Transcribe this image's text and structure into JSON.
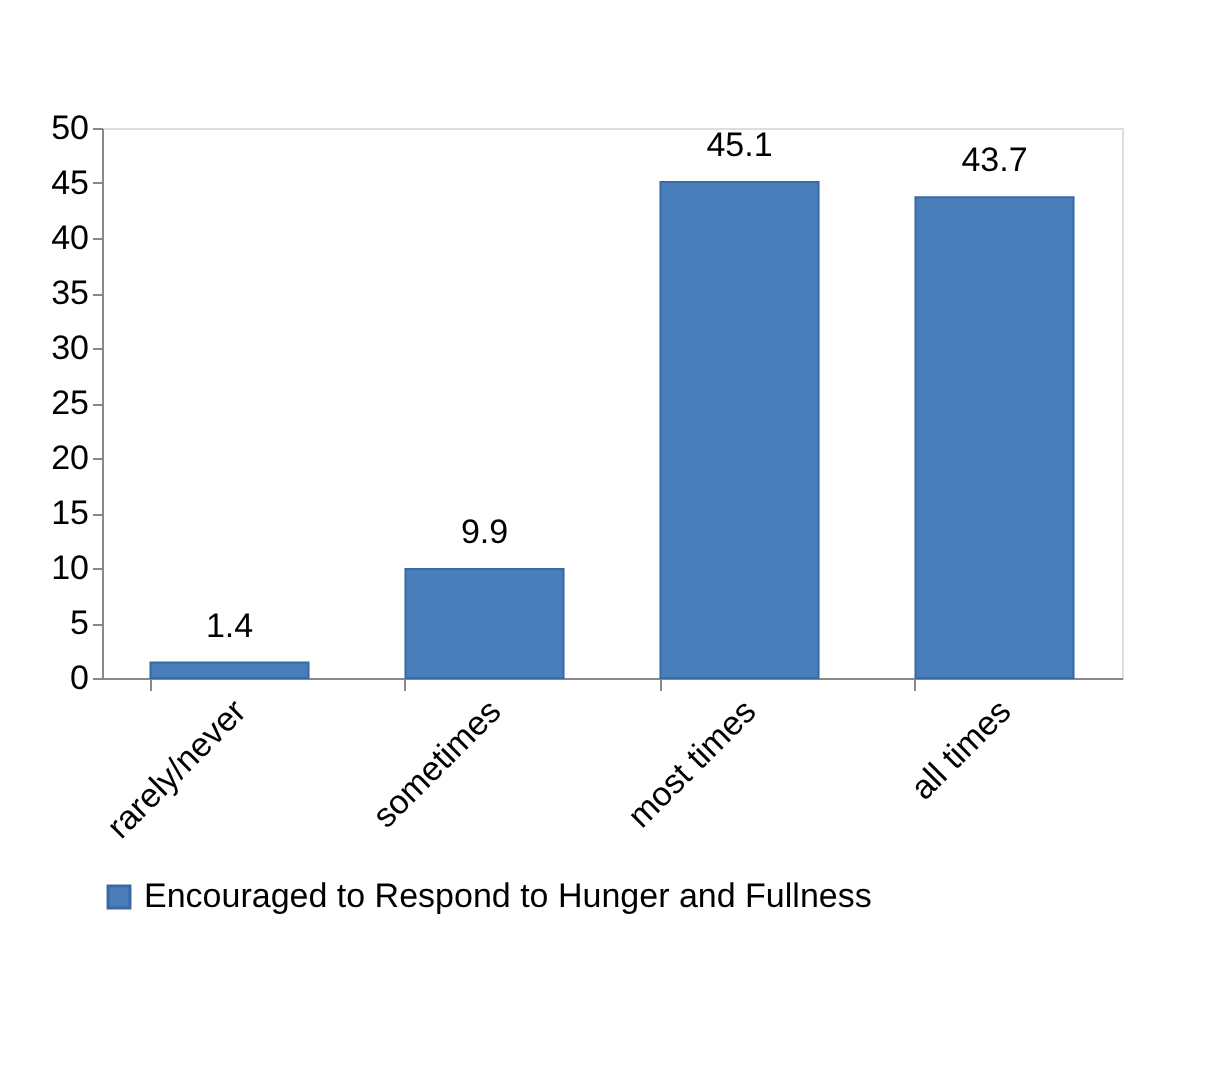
{
  "chart_data": {
    "type": "bar",
    "categories": [
      "rarely/never",
      "sometimes",
      "most times",
      "all times"
    ],
    "series": [
      {
        "name": "Encouraged to Respond to Hunger and Fullness",
        "color": "#4a7ebb",
        "values": [
          1.4,
          9.9,
          45.1,
          43.7
        ]
      }
    ],
    "ylim": [
      0,
      50
    ],
    "yticks": [
      0,
      5,
      10,
      15,
      20,
      25,
      30,
      35,
      40,
      45,
      50
    ],
    "data_labels": true,
    "grid": false,
    "legend": "bottom"
  }
}
